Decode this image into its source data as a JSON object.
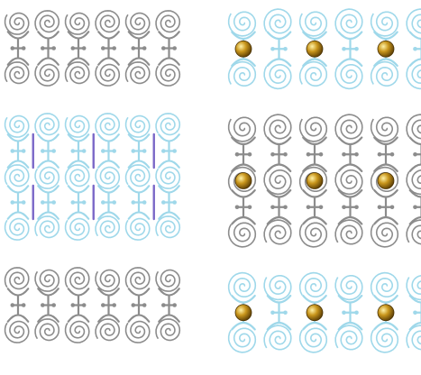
{
  "panels": [
    {
      "id": "left",
      "columns": 6,
      "rows": 7,
      "row_colors": [
        "gray",
        "gray",
        "cyan",
        "cyan",
        "cyan",
        "gray",
        "gray"
      ],
      "connector_rows": [
        {
          "between": [
            0,
            1
          ],
          "color": "gray"
        },
        {
          "between": [
            2,
            3
          ],
          "color": "cyan"
        },
        {
          "between": [
            3,
            4
          ],
          "color": "cyan"
        },
        {
          "between": [
            5,
            6
          ],
          "color": "gray"
        }
      ],
      "purple_rods": [
        {
          "row_range": [
            2,
            3
          ],
          "columns": [
            0,
            2,
            4
          ]
        },
        {
          "row_range": [
            3,
            4
          ],
          "columns": [
            0,
            2,
            4
          ]
        }
      ]
    },
    {
      "id": "right",
      "columns": 6,
      "rows": 7,
      "row_colors": [
        "cyan",
        "cyan",
        "gray",
        "gray",
        "gray",
        "cyan",
        "cyan"
      ],
      "connector_rows": [
        {
          "between": [
            0,
            1
          ],
          "color": "cyan"
        },
        {
          "between": [
            2,
            3
          ],
          "color": "gray"
        },
        {
          "between": [
            3,
            4
          ],
          "color": "gray"
        },
        {
          "between": [
            5,
            6
          ],
          "color": "cyan"
        }
      ],
      "gold_atoms": [
        {
          "row_range": [
            0,
            1
          ],
          "columns": [
            0,
            2,
            4
          ]
        },
        {
          "row_range": [
            2,
            4
          ],
          "columns": [
            0,
            2,
            4
          ]
        },
        {
          "row_range": [
            5,
            6
          ],
          "columns": [
            0,
            2,
            4
          ]
        }
      ]
    }
  ],
  "colors": {
    "gray": "#8c8c8c",
    "cyan": "#9fd8ea",
    "gold": "#b8860b",
    "purple": "#7b68c8",
    "background": "#ffffff"
  }
}
